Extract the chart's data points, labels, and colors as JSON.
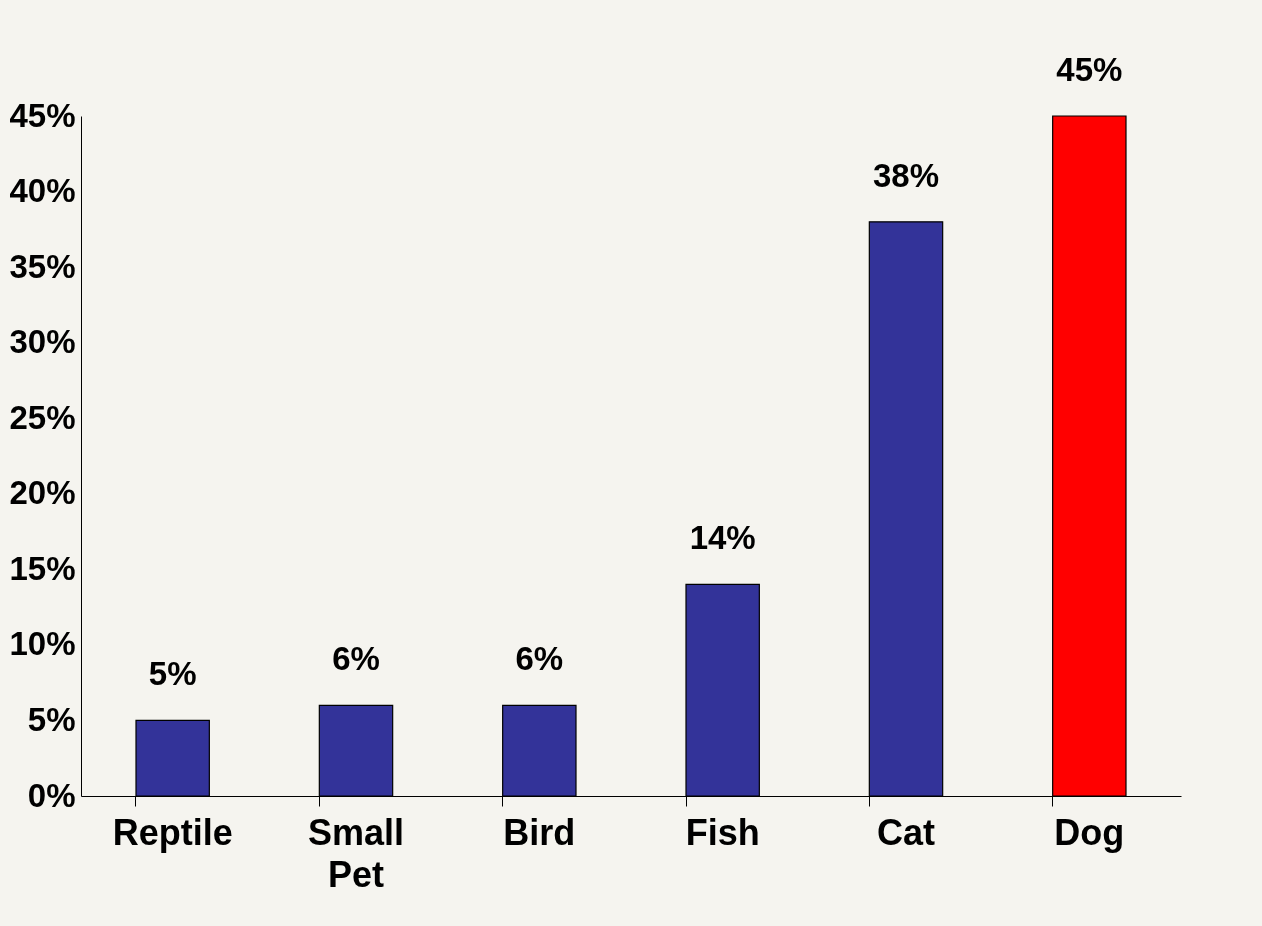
{
  "chart_data": {
    "type": "bar",
    "categories": [
      "Reptile",
      "Small Pet",
      "Bird",
      "Fish",
      "Cat",
      "Dog"
    ],
    "values": [
      5,
      6,
      6,
      14,
      38,
      45
    ],
    "colors": [
      "#333399",
      "#333399",
      "#333399",
      "#333399",
      "#333399",
      "#ff0000"
    ],
    "value_labels": [
      "5%",
      "6%",
      "6%",
      "14%",
      "38%",
      "45%"
    ],
    "ylim": [
      0,
      45
    ],
    "yticks": [
      {
        "value": 0,
        "label": "0%"
      },
      {
        "value": 5,
        "label": "5%"
      },
      {
        "value": 10,
        "label": "10%"
      },
      {
        "value": 15,
        "label": "15%"
      },
      {
        "value": 20,
        "label": "20%"
      },
      {
        "value": 25,
        "label": "25%"
      },
      {
        "value": 30,
        "label": "30%"
      },
      {
        "value": 35,
        "label": "35%"
      },
      {
        "value": 40,
        "label": "40%"
      },
      {
        "value": 45,
        "label": "45%"
      }
    ],
    "grid": false
  }
}
